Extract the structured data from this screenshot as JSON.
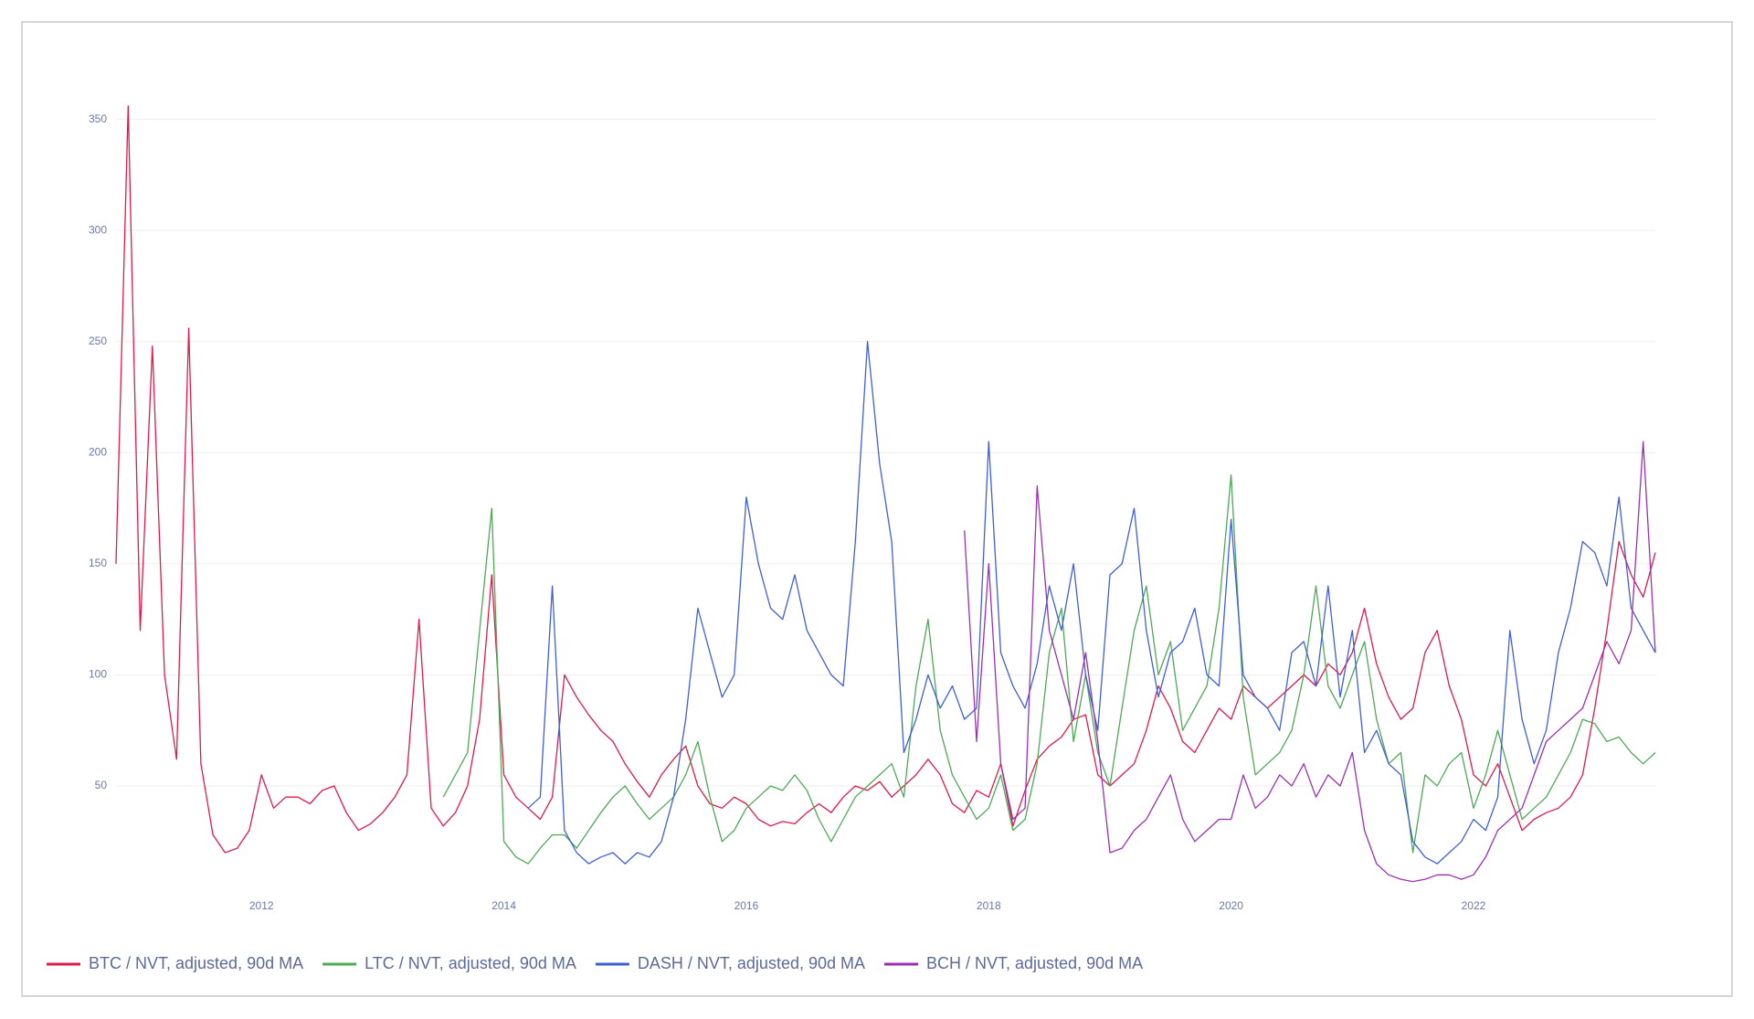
{
  "chart_data": {
    "type": "line",
    "x": [
      2010.8,
      2010.9,
      2011.0,
      2011.1,
      2011.2,
      2011.3,
      2011.4,
      2011.5,
      2011.6,
      2011.7,
      2011.8,
      2011.9,
      2012.0,
      2012.1,
      2012.2,
      2012.3,
      2012.4,
      2012.5,
      2012.6,
      2012.7,
      2012.8,
      2012.9,
      2013.0,
      2013.1,
      2013.2,
      2013.3,
      2013.4,
      2013.5,
      2013.6,
      2013.7,
      2013.8,
      2013.9,
      2014.0,
      2014.1,
      2014.2,
      2014.3,
      2014.4,
      2014.5,
      2014.6,
      2014.7,
      2014.8,
      2014.9,
      2015.0,
      2015.1,
      2015.2,
      2015.3,
      2015.4,
      2015.5,
      2015.6,
      2015.7,
      2015.8,
      2015.9,
      2016.0,
      2016.1,
      2016.2,
      2016.3,
      2016.4,
      2016.5,
      2016.6,
      2016.7,
      2016.8,
      2016.9,
      2017.0,
      2017.1,
      2017.2,
      2017.3,
      2017.4,
      2017.5,
      2017.6,
      2017.7,
      2017.8,
      2017.9,
      2018.0,
      2018.1,
      2018.2,
      2018.3,
      2018.4,
      2018.5,
      2018.6,
      2018.7,
      2018.8,
      2018.9,
      2019.0,
      2019.1,
      2019.2,
      2019.3,
      2019.4,
      2019.5,
      2019.6,
      2019.7,
      2019.8,
      2019.9,
      2020.0,
      2020.1,
      2020.2,
      2020.3,
      2020.4,
      2020.5,
      2020.6,
      2020.7,
      2020.8,
      2020.9,
      2021.0,
      2021.1,
      2021.2,
      2021.3,
      2021.4,
      2021.5,
      2021.6,
      2021.7,
      2021.8,
      2021.9,
      2022.0,
      2022.1,
      2022.2,
      2022.3,
      2022.4,
      2022.5,
      2022.6,
      2022.7,
      2022.8,
      2022.9,
      2023.0,
      2023.1,
      2023.2,
      2023.3,
      2023.4,
      2023.5
    ],
    "series": [
      {
        "name": "BTC / NVT, adjusted, 90d MA",
        "color": "#e0194a",
        "values": [
          150,
          356,
          120,
          248,
          100,
          62,
          256,
          60,
          28,
          20,
          22,
          30,
          55,
          40,
          45,
          45,
          42,
          48,
          50,
          38,
          30,
          33,
          38,
          45,
          55,
          125,
          40,
          32,
          38,
          50,
          80,
          145,
          55,
          45,
          40,
          35,
          45,
          100,
          90,
          82,
          75,
          70,
          60,
          52,
          45,
          55,
          62,
          68,
          50,
          42,
          40,
          45,
          42,
          35,
          32,
          34,
          33,
          38,
          42,
          38,
          45,
          50,
          48,
          52,
          45,
          50,
          55,
          62,
          55,
          42,
          38,
          48,
          45,
          60,
          32,
          48,
          62,
          68,
          72,
          80,
          82,
          55,
          50,
          55,
          60,
          75,
          95,
          85,
          70,
          65,
          75,
          85,
          80,
          95,
          90,
          85,
          90,
          95,
          100,
          95,
          105,
          100,
          110,
          130,
          105,
          90,
          80,
          85,
          110,
          120,
          95,
          80,
          55,
          50,
          60,
          45,
          30,
          35,
          38,
          40,
          45,
          55,
          85,
          120,
          160,
          145,
          135,
          155
        ]
      },
      {
        "name": "LTC / NVT, adjusted, 90d MA",
        "color": "#4caa55",
        "values": [
          null,
          null,
          null,
          null,
          null,
          null,
          null,
          null,
          null,
          null,
          null,
          null,
          null,
          null,
          null,
          null,
          null,
          null,
          null,
          null,
          null,
          null,
          null,
          null,
          null,
          null,
          null,
          45,
          55,
          65,
          120,
          175,
          25,
          18,
          15,
          22,
          28,
          28,
          22,
          30,
          38,
          45,
          50,
          42,
          35,
          40,
          45,
          55,
          70,
          45,
          25,
          30,
          40,
          45,
          50,
          48,
          55,
          48,
          35,
          25,
          35,
          45,
          50,
          55,
          60,
          45,
          95,
          125,
          75,
          55,
          45,
          35,
          40,
          55,
          30,
          35,
          60,
          110,
          130,
          70,
          100,
          65,
          50,
          85,
          120,
          140,
          100,
          115,
          75,
          85,
          95,
          130,
          190,
          90,
          55,
          60,
          65,
          75,
          100,
          140,
          95,
          85,
          100,
          115,
          80,
          60,
          65,
          20,
          55,
          50,
          60,
          65,
          40,
          55,
          75,
          55,
          35,
          40,
          45,
          55,
          65,
          80,
          78,
          70,
          72,
          65,
          60,
          65
        ]
      },
      {
        "name": "DASH / NVT, adjusted, 90d MA",
        "color": "#3f5fd6",
        "values": [
          null,
          null,
          null,
          null,
          null,
          null,
          null,
          null,
          null,
          null,
          null,
          null,
          null,
          null,
          null,
          null,
          null,
          null,
          null,
          null,
          null,
          null,
          null,
          null,
          null,
          null,
          null,
          null,
          null,
          null,
          null,
          null,
          null,
          null,
          40,
          45,
          140,
          30,
          20,
          15,
          18,
          20,
          15,
          20,
          18,
          25,
          45,
          80,
          130,
          110,
          90,
          100,
          180,
          150,
          130,
          125,
          145,
          120,
          110,
          100,
          95,
          160,
          250,
          195,
          160,
          65,
          80,
          100,
          85,
          95,
          80,
          85,
          205,
          110,
          95,
          85,
          105,
          140,
          120,
          150,
          100,
          75,
          145,
          150,
          175,
          120,
          90,
          110,
          115,
          130,
          100,
          95,
          170,
          100,
          90,
          85,
          75,
          110,
          115,
          95,
          140,
          90,
          120,
          65,
          75,
          60,
          55,
          25,
          18,
          15,
          20,
          25,
          35,
          30,
          45,
          120,
          80,
          60,
          75,
          110,
          130,
          160,
          155,
          140,
          180,
          130,
          120,
          110
        ]
      },
      {
        "name": "BCH / NVT, adjusted, 90d MA",
        "color": "#9b2fb4",
        "values": [
          null,
          null,
          null,
          null,
          null,
          null,
          null,
          null,
          null,
          null,
          null,
          null,
          null,
          null,
          null,
          null,
          null,
          null,
          null,
          null,
          null,
          null,
          null,
          null,
          null,
          null,
          null,
          null,
          null,
          null,
          null,
          null,
          null,
          null,
          null,
          null,
          null,
          null,
          null,
          null,
          null,
          null,
          null,
          null,
          null,
          null,
          null,
          null,
          null,
          null,
          null,
          null,
          null,
          null,
          null,
          null,
          null,
          null,
          null,
          null,
          null,
          null,
          null,
          null,
          null,
          null,
          null,
          null,
          null,
          null,
          165,
          70,
          150,
          60,
          35,
          40,
          185,
          120,
          100,
          80,
          110,
          70,
          20,
          22,
          30,
          35,
          45,
          55,
          35,
          25,
          30,
          35,
          35,
          55,
          40,
          45,
          55,
          50,
          60,
          45,
          55,
          50,
          65,
          30,
          15,
          10,
          8,
          7,
          8,
          10,
          10,
          8,
          10,
          18,
          30,
          35,
          40,
          55,
          70,
          75,
          80,
          85,
          100,
          115,
          105,
          120,
          205,
          110
        ]
      }
    ],
    "xlim": [
      2010.8,
      2023.5
    ],
    "xticks": [
      2012,
      2014,
      2016,
      2018,
      2020,
      2022
    ],
    "ylim": [
      6,
      356
    ],
    "yticks": [
      50,
      100,
      150,
      200,
      250,
      300,
      350
    ],
    "grid": true,
    "legend": "bottom"
  }
}
